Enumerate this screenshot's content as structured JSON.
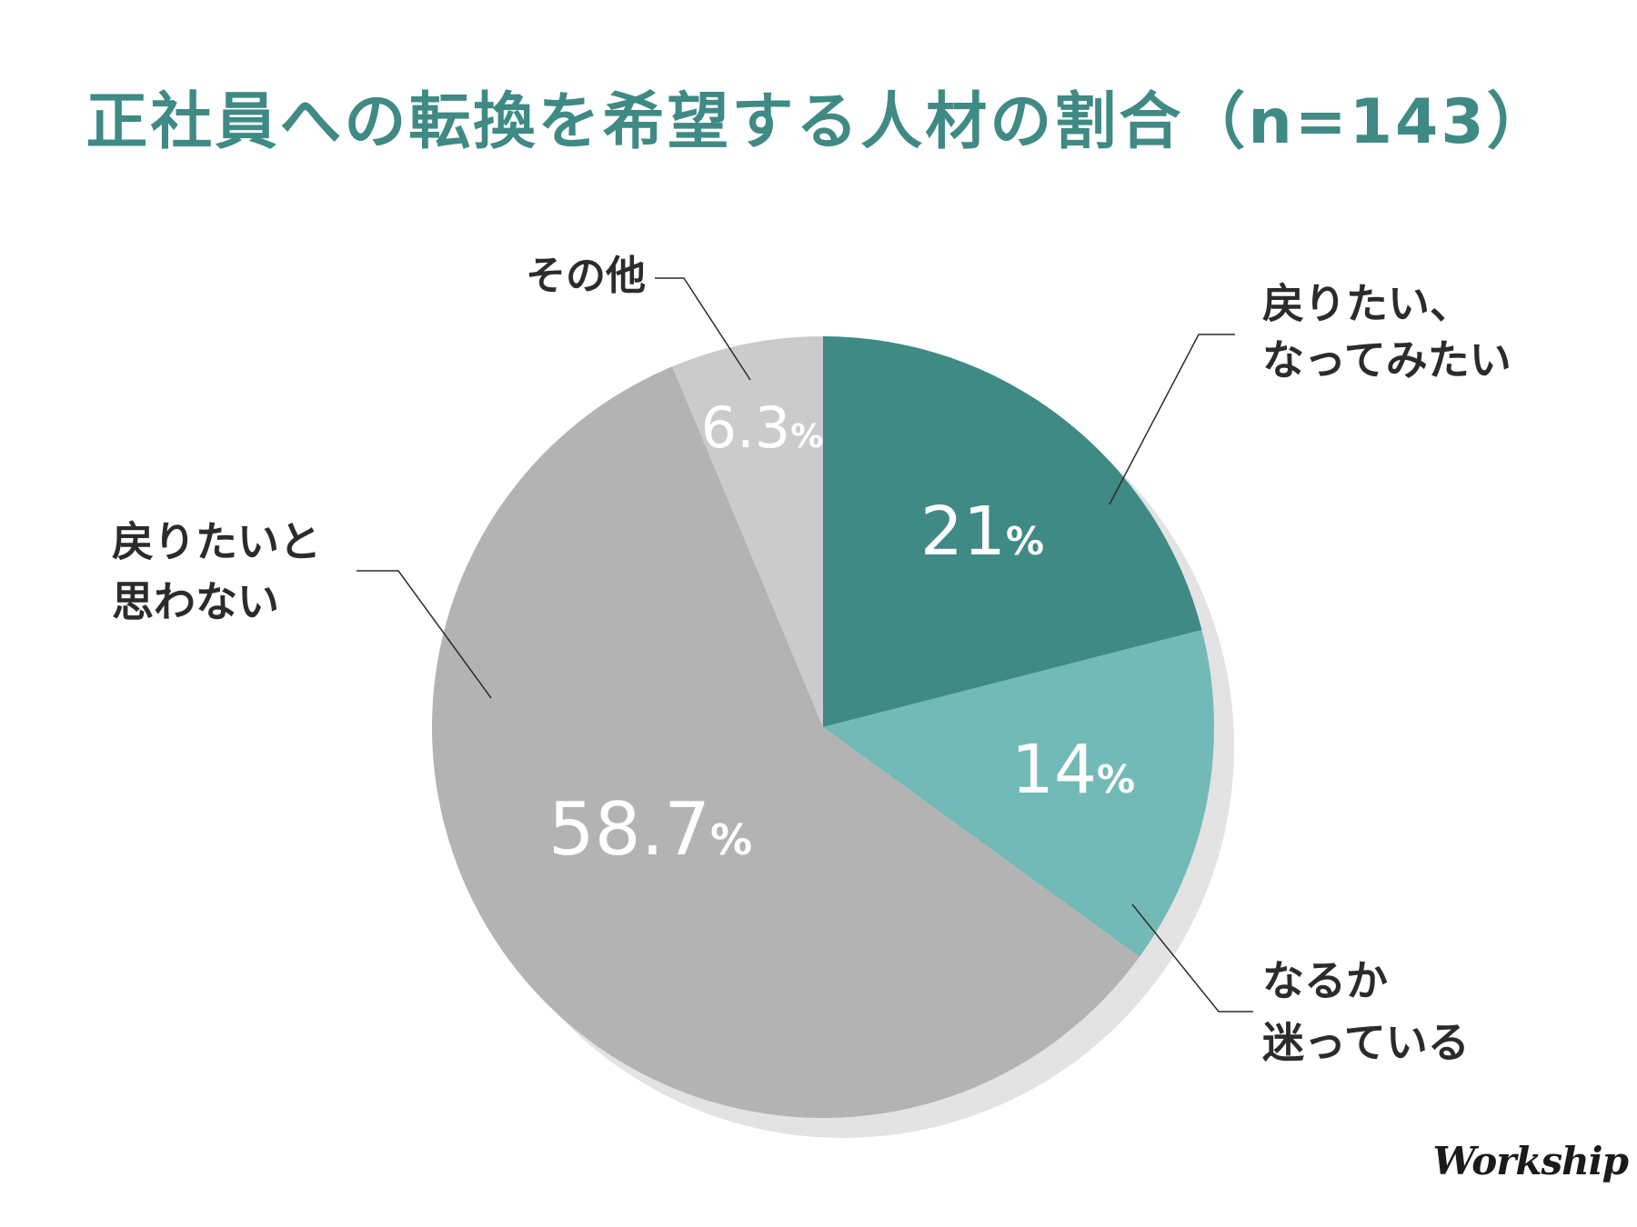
{
  "chart_data": {
    "type": "pie",
    "title": "正社員への転換を希望する人材の割合（n=143）",
    "unit": "%",
    "slices": [
      {
        "label_lines": [
          "戻りたい、",
          "なってみたい"
        ],
        "value": 21,
        "value_text": "21",
        "color": "#3f8a84"
      },
      {
        "label_lines": [
          "なるか",
          "迷っている"
        ],
        "value": 14,
        "value_text": "14",
        "color": "#72bab7"
      },
      {
        "label_lines": [
          "戻りたいと",
          "思わない"
        ],
        "value": 58.7,
        "value_text": "58.7",
        "color": "#b3b3b3"
      },
      {
        "label_lines": [
          "その他"
        ],
        "value": 6.3,
        "value_text": "6.3",
        "color": "#cbcbcb"
      }
    ],
    "start_angle": "12 o'clock",
    "direction": "clockwise",
    "shadow_color": "#e3e3e3"
  },
  "brand": {
    "logo_text": "Workship"
  }
}
